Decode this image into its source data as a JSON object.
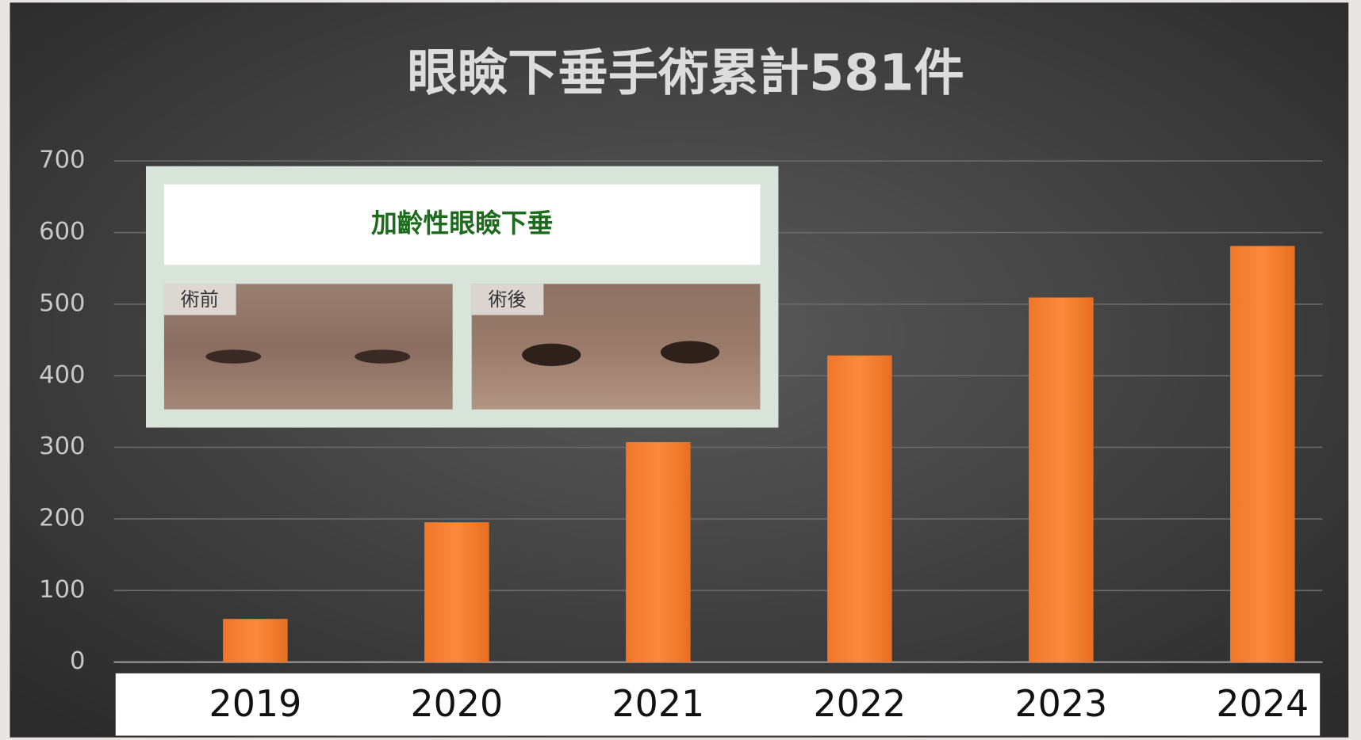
{
  "chart_data": {
    "type": "bar",
    "title": "眼瞼下垂手術累計581件",
    "categories": [
      "2019",
      "2020",
      "2021",
      "2022",
      "2023",
      "2024"
    ],
    "values": [
      60,
      195,
      307,
      428,
      509,
      581
    ],
    "color": "#f47c2c",
    "ylim": [
      0,
      700
    ],
    "yticks": [
      0,
      100,
      200,
      300,
      400,
      500,
      600,
      700
    ],
    "grid": true
  },
  "inset": {
    "title": "加齡性眼瞼下垂",
    "before_label": "術前",
    "after_label": "術後"
  }
}
